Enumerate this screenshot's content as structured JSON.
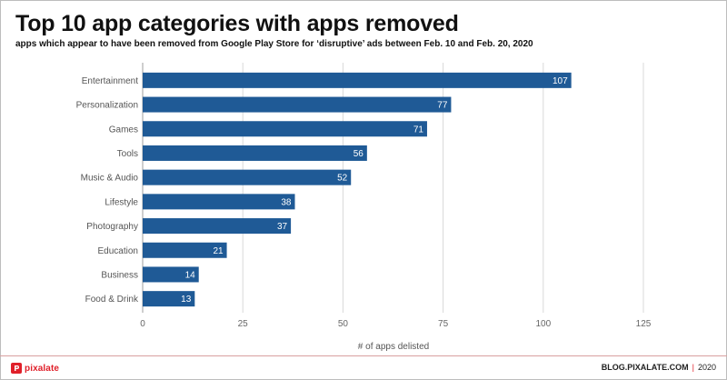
{
  "header": {
    "title": "Top 10 app categories with apps removed",
    "subtitle": "apps which appear to have been removed from Google Play Store for ‘disruptive’ ads between Feb. 10 and Feb. 20, 2020"
  },
  "chart_data": {
    "type": "bar",
    "orientation": "horizontal",
    "categories": [
      "Entertainment",
      "Personalization",
      "Games",
      "Tools",
      "Music & Audio",
      "Lifestyle",
      "Photography",
      "Education",
      "Business",
      "Food & Drink"
    ],
    "values": [
      107,
      77,
      71,
      56,
      52,
      38,
      37,
      21,
      14,
      13
    ],
    "xlabel": "# of apps delisted",
    "ylabel": "",
    "xlim": [
      0,
      125
    ],
    "xticks": [
      0,
      25,
      50,
      75,
      100,
      125
    ],
    "grid": true,
    "bar_color": "#1f5a96",
    "label_color": "#ffffff"
  },
  "footer": {
    "logo_text": "pixalate",
    "site": "BLOG.PIXALATE.COM",
    "separator": "|",
    "year": "2020",
    "accent_color": "#e0202a"
  }
}
